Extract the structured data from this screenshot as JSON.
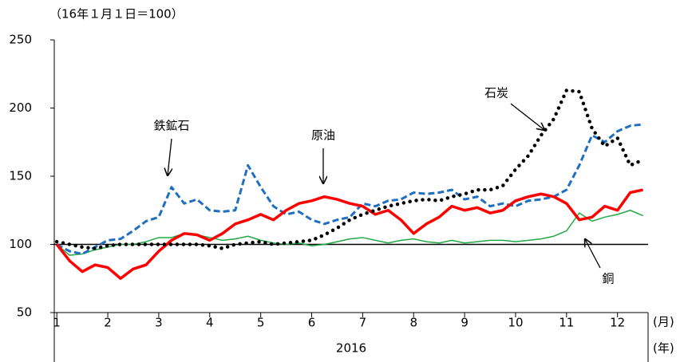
{
  "chart_data": {
    "type": "line",
    "subtitle": "（16年１月１日＝100）",
    "x": [
      1,
      1.25,
      1.5,
      1.75,
      2,
      2.25,
      2.5,
      2.75,
      3,
      3.25,
      3.5,
      3.75,
      4,
      4.25,
      4.5,
      4.75,
      5,
      5.25,
      5.5,
      5.75,
      6,
      6.25,
      6.5,
      6.75,
      7,
      7.25,
      7.5,
      7.75,
      8,
      8.25,
      8.5,
      8.75,
      9,
      9.25,
      9.5,
      9.75,
      10,
      10.25,
      10.5,
      10.75,
      11,
      11.25,
      11.5,
      11.75,
      12,
      12.25,
      12.5
    ],
    "series": [
      {
        "name": "原油",
        "color": "#ff0000",
        "style": "solid",
        "values": [
          100,
          88,
          80,
          85,
          83,
          75,
          82,
          85,
          95,
          103,
          108,
          107,
          103,
          108,
          115,
          118,
          122,
          118,
          125,
          130,
          132,
          135,
          133,
          130,
          128,
          122,
          125,
          118,
          108,
          115,
          120,
          128,
          125,
          127,
          123,
          125,
          132,
          135,
          137,
          135,
          130,
          118,
          120,
          128,
          125,
          138,
          140
        ]
      },
      {
        "name": "鉄鉱石",
        "color": "#1f6fc0",
        "style": "dashed",
        "values": [
          100,
          95,
          93,
          98,
          103,
          104,
          110,
          117,
          120,
          142,
          130,
          133,
          125,
          124,
          125,
          158,
          142,
          128,
          122,
          124,
          118,
          115,
          118,
          120,
          130,
          128,
          132,
          133,
          138,
          137,
          138,
          140,
          133,
          135,
          128,
          130,
          128,
          132,
          133,
          135,
          140,
          158,
          180,
          175,
          183,
          187,
          188
        ]
      },
      {
        "name": "石炭",
        "color": "#000000",
        "style": "dotted",
        "values": [
          102,
          100,
          98,
          97,
          99,
          100,
          100,
          100,
          100,
          100,
          100,
          100,
          99,
          97,
          100,
          101,
          102,
          100,
          101,
          102,
          103,
          107,
          112,
          118,
          122,
          125,
          128,
          130,
          132,
          133,
          132,
          135,
          137,
          140,
          140,
          143,
          155,
          165,
          180,
          192,
          213,
          212,
          185,
          172,
          178,
          158,
          162
        ]
      },
      {
        "name": "銅",
        "color": "#22aa44",
        "style": "thin",
        "values": [
          100,
          92,
          93,
          96,
          98,
          100,
          100,
          102,
          105,
          105,
          108,
          107,
          105,
          103,
          104,
          106,
          103,
          101,
          100,
          101,
          99,
          100,
          102,
          104,
          105,
          103,
          101,
          103,
          104,
          102,
          101,
          103,
          101,
          102,
          103,
          103,
          102,
          103,
          104,
          106,
          110,
          123,
          117,
          120,
          122,
          125,
          121
        ]
      }
    ],
    "xlim": [
      0.95,
      12.6
    ],
    "xticks": [
      1,
      2,
      3,
      4,
      5,
      6,
      7,
      8,
      9,
      10,
      11,
      12
    ],
    "ylim": [
      50,
      250
    ],
    "yticks": [
      50,
      100,
      150,
      200,
      250
    ],
    "reference_line": 100,
    "x_unit": "(月)",
    "year": "2016",
    "year_unit": "(年)"
  }
}
